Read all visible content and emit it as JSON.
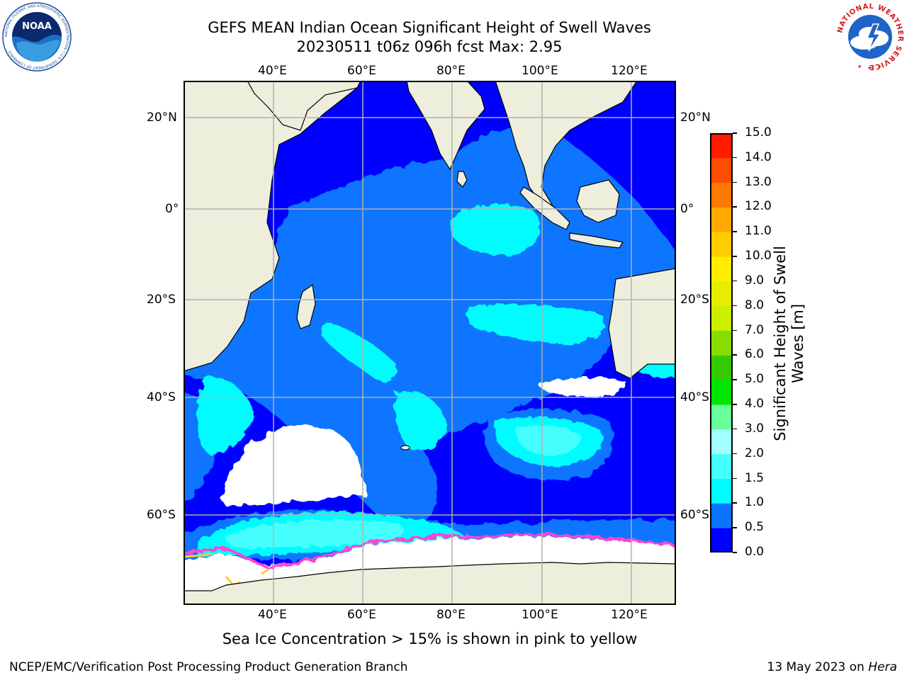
{
  "header": {
    "title": "GEFS MEAN Indian Ocean Significant Height of Swell Waves",
    "subtitle": "20230511 t06z 096h fcst   Max: 2.95"
  },
  "map": {
    "lon_labels": [
      "40°E",
      "60°E",
      "80°E",
      "100°E",
      "120°E"
    ],
    "lat_labels": [
      "20°N",
      "0°",
      "20°S",
      "40°S",
      "60°S"
    ],
    "colors": {
      "land": "#eeeedd",
      "sea_ice": "#ffffff",
      "ice_edge": [
        "#ff44cc",
        "#ffa0e6",
        "#ffcc33"
      ],
      "grid": "#b0b0b0",
      "coast": "#000000"
    }
  },
  "colorbar": {
    "label_line1": "Significant Height of Swell",
    "label_line2": "Waves [m]",
    "ticks": [
      "0.0",
      "0.5",
      "1.0",
      "1.5",
      "2.0",
      "3.0",
      "4.0",
      "5.0",
      "6.0",
      "7.0",
      "8.0",
      "9.0",
      "10.0",
      "11.0",
      "12.0",
      "13.0",
      "14.0",
      "15.0"
    ],
    "colors": [
      "#0000ff",
      "#0a74ff",
      "#00fcff",
      "#45ffff",
      "#a2ffff",
      "#66ff99",
      "#00e600",
      "#33cc00",
      "#88dd00",
      "#ccee00",
      "#e6ee00",
      "#ffee00",
      "#ffcc00",
      "#ffaa00",
      "#ff7a00",
      "#ff4d00",
      "#ff1a00"
    ]
  },
  "footer": {
    "note": "Sea Ice Concentration > 15% is shown in pink to yellow",
    "credit": "NCEP/EMC/Verification Post Processing Product Generation Branch",
    "date": "13 May 2023 on",
    "machine": "Hera"
  },
  "logos": {
    "noaa": {
      "text": "NOAA",
      "ring": "NATIONAL OCEANIC AND ATMOSPHERIC ADMINISTRATION • U.S. DEPARTMENT OF COMMERCE"
    },
    "nws": {
      "ring": "NATIONAL WEATHER SERVICE"
    }
  }
}
